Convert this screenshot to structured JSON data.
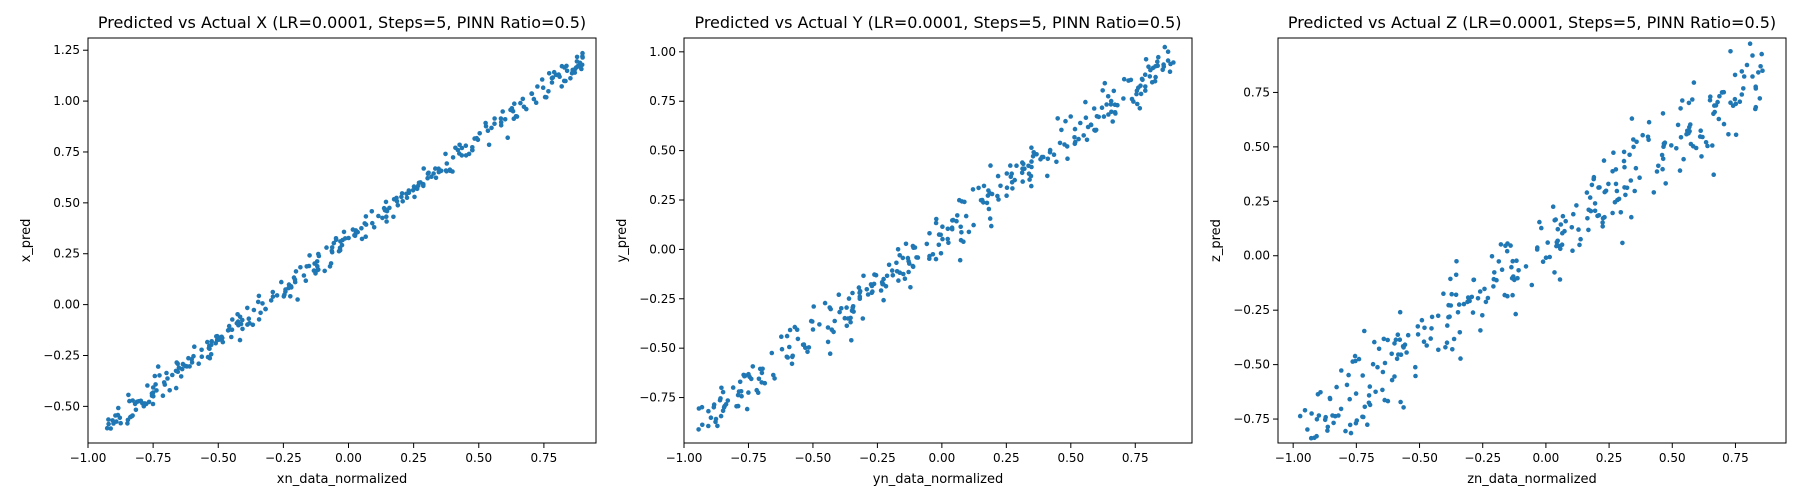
{
  "chart_data": [
    {
      "type": "scatter",
      "title": "Predicted vs Actual X (LR=0.0001, Steps=5, PINN Ratio=0.5)",
      "xlabel": "xn_data_normalized",
      "ylabel": "x_pred",
      "xlim": [
        -1.0,
        0.95
      ],
      "ylim": [
        -0.68,
        1.31
      ],
      "xticks": [
        -1.0,
        -0.75,
        -0.5,
        -0.25,
        0.0,
        0.25,
        0.5,
        0.75
      ],
      "xtick_labels": [
        "−1.00",
        "−0.75",
        "−0.50",
        "−0.25",
        "0.00",
        "0.25",
        "0.50",
        "0.75"
      ],
      "yticks": [
        -0.5,
        -0.25,
        0.0,
        0.25,
        0.5,
        0.75,
        1.0,
        1.25
      ],
      "ytick_labels": [
        "−0.50",
        "−0.25",
        "0.00",
        "0.25",
        "0.50",
        "0.75",
        "1.00",
        "1.25"
      ],
      "trend": {
        "x_range": [
          -0.93,
          0.9
        ],
        "slope": 0.99,
        "intercept": 0.32,
        "spread": 0.03,
        "count": 320
      },
      "marker_color": "#1f77b4",
      "grid": false
    },
    {
      "type": "scatter",
      "title": "Predicted vs Actual Y (LR=0.0001, Steps=5, PINN Ratio=0.5)",
      "xlabel": "yn_data_normalized",
      "ylabel": "y_pred",
      "xlim": [
        -1.0,
        0.97
      ],
      "ylim": [
        -0.98,
        1.07
      ],
      "xticks": [
        -1.0,
        -0.75,
        -0.5,
        -0.25,
        0.0,
        0.25,
        0.5,
        0.75
      ],
      "xtick_labels": [
        "−1.00",
        "−0.75",
        "−0.50",
        "−0.25",
        "0.00",
        "0.25",
        "0.50",
        "0.75"
      ],
      "yticks": [
        -0.75,
        -0.5,
        -0.25,
        0.0,
        0.25,
        0.5,
        0.75,
        1.0
      ],
      "ytick_labels": [
        "−0.75",
        "−0.50",
        "−0.25",
        "0.00",
        "0.25",
        "0.50",
        "0.75",
        "1.00"
      ],
      "trend": {
        "x_range": [
          -0.95,
          0.9
        ],
        "slope": 1.0,
        "intercept": 0.07,
        "spread": 0.065,
        "count": 320
      },
      "marker_color": "#1f77b4",
      "grid": false
    },
    {
      "type": "scatter",
      "title": "Predicted vs Actual Z (LR=0.0001, Steps=5, PINN Ratio=0.5)",
      "xlabel": "zn_data_normalized",
      "ylabel": "z_pred",
      "xlim": [
        -1.06,
        0.95
      ],
      "ylim": [
        -0.86,
        1.0
      ],
      "xticks": [
        -1.0,
        -0.75,
        -0.5,
        -0.25,
        0.0,
        0.25,
        0.5,
        0.75
      ],
      "xtick_labels": [
        "−1.00",
        "−0.75",
        "−0.50",
        "−0.25",
        "0.00",
        "0.25",
        "0.50",
        "0.75"
      ],
      "yticks": [
        -0.75,
        -0.5,
        -0.25,
        0.0,
        0.25,
        0.5,
        0.75
      ],
      "ytick_labels": [
        "−0.75",
        "−0.50",
        "−0.25",
        "0.00",
        "0.25",
        "0.50",
        "0.75"
      ],
      "trend": {
        "x_range": [
          -0.98,
          0.86
        ],
        "slope": 0.9,
        "intercept": 0.06,
        "spread": 0.1,
        "count": 320
      },
      "marker_color": "#1f77b4",
      "grid": false
    }
  ]
}
